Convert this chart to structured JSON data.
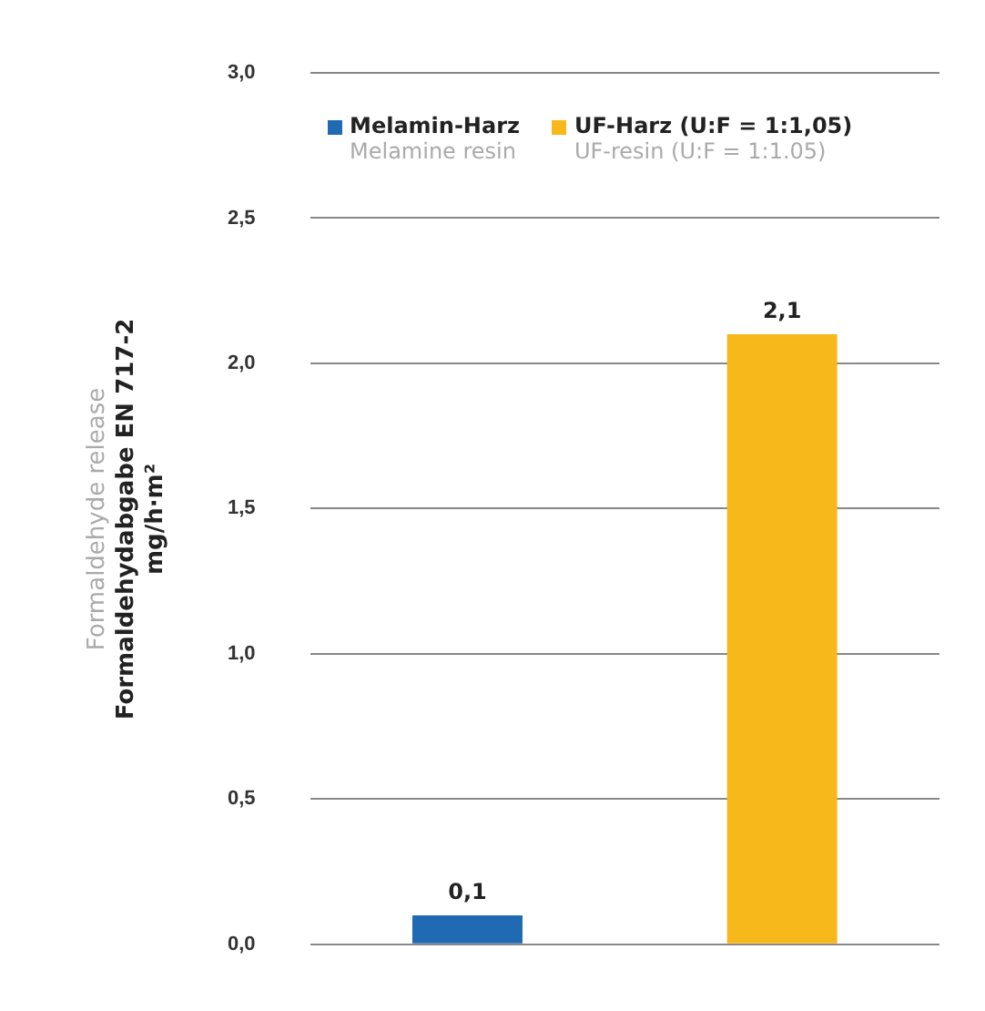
{
  "chart_data": {
    "type": "bar",
    "ylabel": "Formaldehyde release\nFormaldehydabgabe EN 717-2\nmg/h·m²",
    "categories": [
      null,
      null
    ],
    "series": [
      {
        "name": "Melamin-Harz\nMelamine resin",
        "color": "#1f6ab3",
        "values": [
          0.1,
          null
        ],
        "value_labels": [
          "0,1",
          null
        ]
      },
      {
        "name": "UF-Harz (U:F = 1:1,05)\nUF-resin (U:F = 1:1.05)",
        "color": "#f6b81a",
        "values": [
          null,
          2.1
        ],
        "value_labels": [
          null,
          "2,1"
        ]
      }
    ],
    "ylim": [
      0,
      3
    ],
    "yticks": [
      {
        "value": 0,
        "label": "0,0"
      },
      {
        "value": 0.5,
        "label": "0,5"
      },
      {
        "value": 1,
        "label": "1,0"
      },
      {
        "value": 1.5,
        "label": "1,5"
      },
      {
        "value": 2,
        "label": "2,0"
      },
      {
        "value": 2.5,
        "label": "2,5"
      },
      {
        "value": 3,
        "label": "3,0"
      }
    ],
    "grid": "y",
    "legend": "top"
  }
}
